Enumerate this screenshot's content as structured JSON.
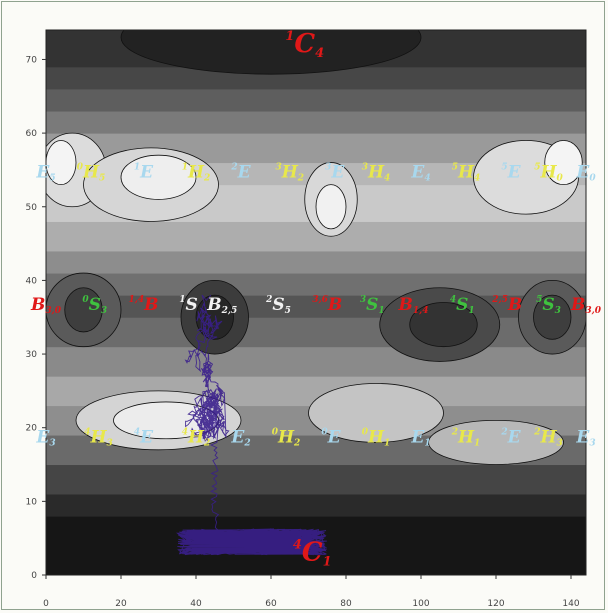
{
  "chart_data": {
    "type": "heatmap",
    "title": "",
    "xlabel": "",
    "ylabel": "",
    "xlim": [
      0,
      144
    ],
    "ylim": [
      0,
      74
    ],
    "x_ticks": [
      0,
      20,
      40,
      60,
      80,
      100,
      120,
      140
    ],
    "y_ticks": [
      0,
      10,
      20,
      30,
      40,
      50,
      60,
      70
    ],
    "grid": false,
    "colormap": "grayscale contour (dark = low, light = high)",
    "trajectory_color": "#3a1f8c",
    "label_colors": {
      "red": "#e01818",
      "green": "#3fc23f",
      "white": "#f2f2f2",
      "yellow": "#e8e84a",
      "lightblue": "#a8d8ee"
    },
    "annotations": [
      {
        "base": "C",
        "pre": "1",
        "sub": "4",
        "x": 69,
        "y": 71,
        "color": "red",
        "big": true
      },
      {
        "base": "C",
        "pre": "4",
        "sub": "1",
        "x": 71,
        "y": 2,
        "color": "red",
        "big": true
      },
      {
        "base": "E",
        "pre": "",
        "sub": "5",
        "x": 0,
        "y": 54,
        "color": "lightblue"
      },
      {
        "base": "H",
        "pre": "0",
        "sub": "5",
        "x": 12,
        "y": 54,
        "color": "yellow"
      },
      {
        "base": "E",
        "pre": "1",
        "sub": "",
        "x": 26,
        "y": 54,
        "color": "lightblue"
      },
      {
        "base": "H",
        "pre": "1",
        "sub": "2",
        "x": 40,
        "y": 54,
        "color": "yellow"
      },
      {
        "base": "E",
        "pre": "2",
        "sub": "",
        "x": 52,
        "y": 54,
        "color": "lightblue"
      },
      {
        "base": "H",
        "pre": "3",
        "sub": "2",
        "x": 65,
        "y": 54,
        "color": "yellow"
      },
      {
        "base": "E",
        "pre": "3",
        "sub": "",
        "x": 77,
        "y": 54,
        "color": "lightblue"
      },
      {
        "base": "H",
        "pre": "3",
        "sub": "4",
        "x": 88,
        "y": 54,
        "color": "yellow"
      },
      {
        "base": "E",
        "pre": "",
        "sub": "4",
        "x": 100,
        "y": 54,
        "color": "lightblue"
      },
      {
        "base": "H",
        "pre": "5",
        "sub": "4",
        "x": 112,
        "y": 54,
        "color": "yellow"
      },
      {
        "base": "E",
        "pre": "5",
        "sub": "",
        "x": 124,
        "y": 54,
        "color": "lightblue"
      },
      {
        "base": "H",
        "pre": "5",
        "sub": "0",
        "x": 134,
        "y": 54,
        "color": "yellow"
      },
      {
        "base": "E",
        "pre": "",
        "sub": "0",
        "x": 144,
        "y": 54,
        "color": "lightblue"
      },
      {
        "base": "B",
        "pre": "",
        "sub": "3,0",
        "x": 0,
        "y": 36,
        "color": "red"
      },
      {
        "base": "S",
        "pre": "0",
        "sub": "3",
        "x": 13,
        "y": 36,
        "color": "green"
      },
      {
        "base": "B",
        "pre": "1,4",
        "sub": "",
        "x": 26,
        "y": 36,
        "color": "red"
      },
      {
        "base": "S",
        "pre": "1",
        "sub": "",
        "x": 38,
        "y": 36,
        "color": "white"
      },
      {
        "base": "B",
        "pre": "",
        "sub": "2,5",
        "x": 47,
        "y": 36,
        "color": "white"
      },
      {
        "base": "S",
        "pre": "2",
        "sub": "5",
        "x": 62,
        "y": 36,
        "color": "white"
      },
      {
        "base": "B",
        "pre": "3,6",
        "sub": "",
        "x": 75,
        "y": 36,
        "color": "red"
      },
      {
        "base": "S",
        "pre": "3",
        "sub": "1",
        "x": 87,
        "y": 36,
        "color": "green"
      },
      {
        "base": "B",
        "pre": "",
        "sub": "1,4",
        "x": 98,
        "y": 36,
        "color": "red"
      },
      {
        "base": "S",
        "pre": "4",
        "sub": "1",
        "x": 111,
        "y": 36,
        "color": "green"
      },
      {
        "base": "B",
        "pre": "2,5",
        "sub": "",
        "x": 123,
        "y": 36,
        "color": "red"
      },
      {
        "base": "S",
        "pre": "5",
        "sub": "3",
        "x": 134,
        "y": 36,
        "color": "green"
      },
      {
        "base": "B",
        "pre": "",
        "sub": "3,0",
        "x": 144,
        "y": 36,
        "color": "red"
      },
      {
        "base": "E",
        "pre": "",
        "sub": "3",
        "x": 0,
        "y": 18,
        "color": "lightblue"
      },
      {
        "base": "H",
        "pre": "4",
        "sub": "3",
        "x": 14,
        "y": 18,
        "color": "yellow"
      },
      {
        "base": "E",
        "pre": "4",
        "sub": "",
        "x": 26,
        "y": 18,
        "color": "lightblue"
      },
      {
        "base": "H",
        "pre": "4",
        "sub": "2",
        "x": 40,
        "y": 18,
        "color": "yellow"
      },
      {
        "base": "E",
        "pre": "",
        "sub": "2",
        "x": 52,
        "y": 18,
        "color": "lightblue"
      },
      {
        "base": "H",
        "pre": "0",
        "sub": "2",
        "x": 64,
        "y": 18,
        "color": "yellow"
      },
      {
        "base": "E",
        "pre": "0",
        "sub": "",
        "x": 76,
        "y": 18,
        "color": "lightblue"
      },
      {
        "base": "H",
        "pre": "0",
        "sub": "1",
        "x": 88,
        "y": 18,
        "color": "yellow"
      },
      {
        "base": "E",
        "pre": "",
        "sub": "1",
        "x": 100,
        "y": 18,
        "color": "lightblue"
      },
      {
        "base": "H",
        "pre": "2",
        "sub": "1",
        "x": 112,
        "y": 18,
        "color": "yellow"
      },
      {
        "base": "E",
        "pre": "2",
        "sub": "",
        "x": 124,
        "y": 18,
        "color": "lightblue"
      },
      {
        "base": "H",
        "pre": "2",
        "sub": "3",
        "x": 134,
        "y": 18,
        "color": "yellow"
      },
      {
        "base": "E",
        "pre": "",
        "sub": "3",
        "x": 144,
        "y": 18,
        "color": "lightblue"
      }
    ]
  }
}
